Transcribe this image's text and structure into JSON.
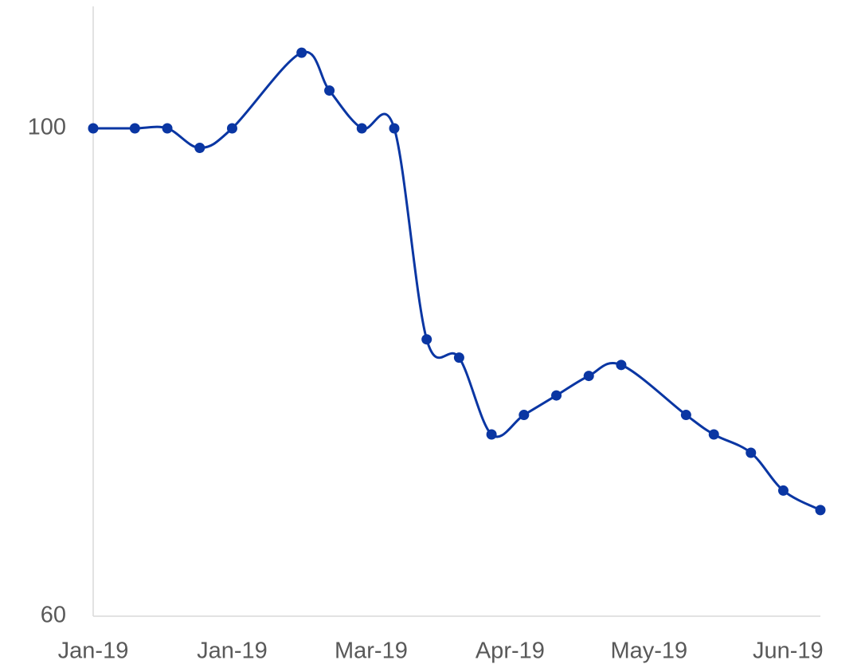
{
  "chart_data": {
    "type": "line",
    "x": [
      0,
      9,
      16,
      23,
      30,
      45,
      51,
      58,
      65,
      72,
      79,
      86,
      93,
      100,
      107,
      114,
      128,
      134,
      142,
      149,
      157
    ],
    "series": [
      {
        "color": "#0a36a3",
        "values": [
          100,
          100,
          100,
          98.4,
          100,
          106.2,
          103.1,
          100,
          100,
          82.7,
          81.2,
          74.9,
          76.5,
          78.1,
          79.7,
          80.6,
          76.5,
          74.9,
          73.4,
          70.3,
          68.7
        ]
      }
    ],
    "xlim": [
      0,
      157
    ],
    "xticks": [
      {
        "value": 0,
        "label": "Jan-19"
      },
      {
        "value": 30,
        "label": "Jan-19"
      },
      {
        "value": 60,
        "label": "Mar-19"
      },
      {
        "value": 90,
        "label": "Apr-19"
      },
      {
        "value": 120,
        "label": "May-19"
      },
      {
        "value": 150,
        "label": "Jun-19"
      }
    ],
    "ylim": [
      60,
      110
    ],
    "yticks": [
      60,
      100
    ],
    "grid": false
  }
}
